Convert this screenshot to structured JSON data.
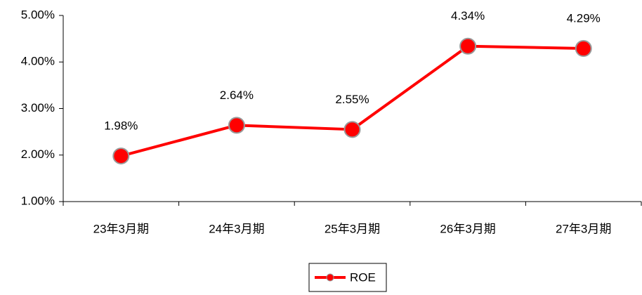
{
  "chart_data": {
    "type": "line",
    "categories": [
      "23年3月期",
      "24年3月期",
      "25年3月期",
      "26年3月期",
      "27年3月期"
    ],
    "series": [
      {
        "name": "ROE",
        "color": "#ff0000",
        "values": [
          1.98,
          2.64,
          2.55,
          4.34,
          4.29
        ],
        "value_labels": [
          "1.98%",
          "2.64%",
          "2.55%",
          "4.34%",
          "4.29%"
        ]
      }
    ],
    "ylim": [
      1,
      5
    ],
    "yticks": [
      {
        "value": 1,
        "label": "1.00%"
      },
      {
        "value": 2,
        "label": "2.00%"
      },
      {
        "value": 3,
        "label": "3.00%"
      },
      {
        "value": 4,
        "label": "4.00%"
      },
      {
        "value": 5,
        "label": "5.00%"
      }
    ],
    "legend": "bottom"
  }
}
